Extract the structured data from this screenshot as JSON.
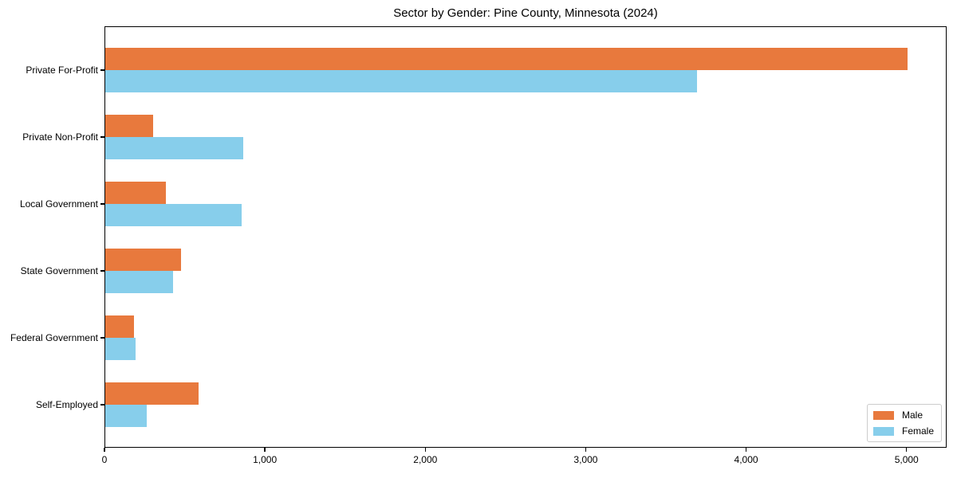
{
  "title": "Sector by Gender: Pine County, Minnesota (2024)",
  "chart_data": {
    "type": "bar",
    "orientation": "horizontal",
    "title": "Sector by Gender: Pine County, Minnesota (2024)",
    "xlabel": "",
    "ylabel": "",
    "categories": [
      "Private For-Profit",
      "Private Non-Profit",
      "Local Government",
      "State Government",
      "Federal Government",
      "Self-Employed"
    ],
    "series": [
      {
        "name": "Male",
        "color": "#e8793d",
        "values": [
          5000,
          300,
          380,
          470,
          180,
          580
        ]
      },
      {
        "name": "Female",
        "color": "#87ceeb",
        "values": [
          3690,
          860,
          850,
          420,
          190,
          260
        ]
      }
    ],
    "xlim": [
      0,
      5250
    ],
    "x_ticks": [
      0,
      1000,
      2000,
      3000,
      4000,
      5000
    ],
    "x_tick_labels": [
      "0",
      "1,000",
      "2,000",
      "3,000",
      "4,000",
      "5,000"
    ],
    "grid": false,
    "legend_position": "lower right",
    "axis_color": "#000000",
    "background_color": "#ffffff"
  }
}
